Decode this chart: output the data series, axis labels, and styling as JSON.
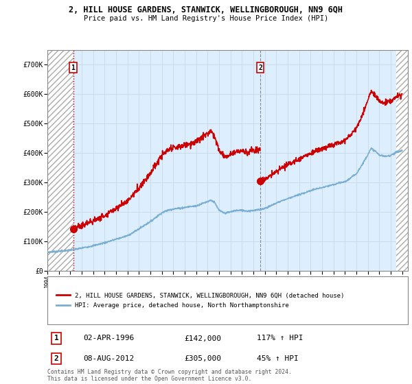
{
  "title_line1": "2, HILL HOUSE GARDENS, STANWICK, WELLINGBOROUGH, NN9 6QH",
  "title_line2": "Price paid vs. HM Land Registry's House Price Index (HPI)",
  "ylim": [
    0,
    750000
  ],
  "yticks": [
    0,
    100000,
    200000,
    300000,
    400000,
    500000,
    600000,
    700000
  ],
  "ytick_labels": [
    "£0",
    "£100K",
    "£200K",
    "£300K",
    "£400K",
    "£500K",
    "£600K",
    "£700K"
  ],
  "xmin": 1994,
  "xmax": 2025.5,
  "sale1_date_num": 1996.25,
  "sale1_price": 142000,
  "sale2_date_num": 2012.6,
  "sale2_price": 305000,
  "sale1_label": "1",
  "sale2_label": "2",
  "legend_line1": "2, HILL HOUSE GARDENS, STANWICK, WELLINGBOROUGH, NN9 6QH (detached house)",
  "legend_line2": "HPI: Average price, detached house, North Northamptonshire",
  "table_row1": [
    "1",
    "02-APR-1996",
    "£142,000",
    "117% ↑ HPI"
  ],
  "table_row2": [
    "2",
    "08-AUG-2012",
    "£305,000",
    "45% ↑ HPI"
  ],
  "footer": "Contains HM Land Registry data © Crown copyright and database right 2024.\nThis data is licensed under the Open Government Licence v3.0.",
  "hpi_color": "#7aafd4",
  "price_color": "#cc0000",
  "grid_color": "#c8d8e8",
  "background_color": "#ddeeff",
  "hatch_color": "#bbbbbb"
}
